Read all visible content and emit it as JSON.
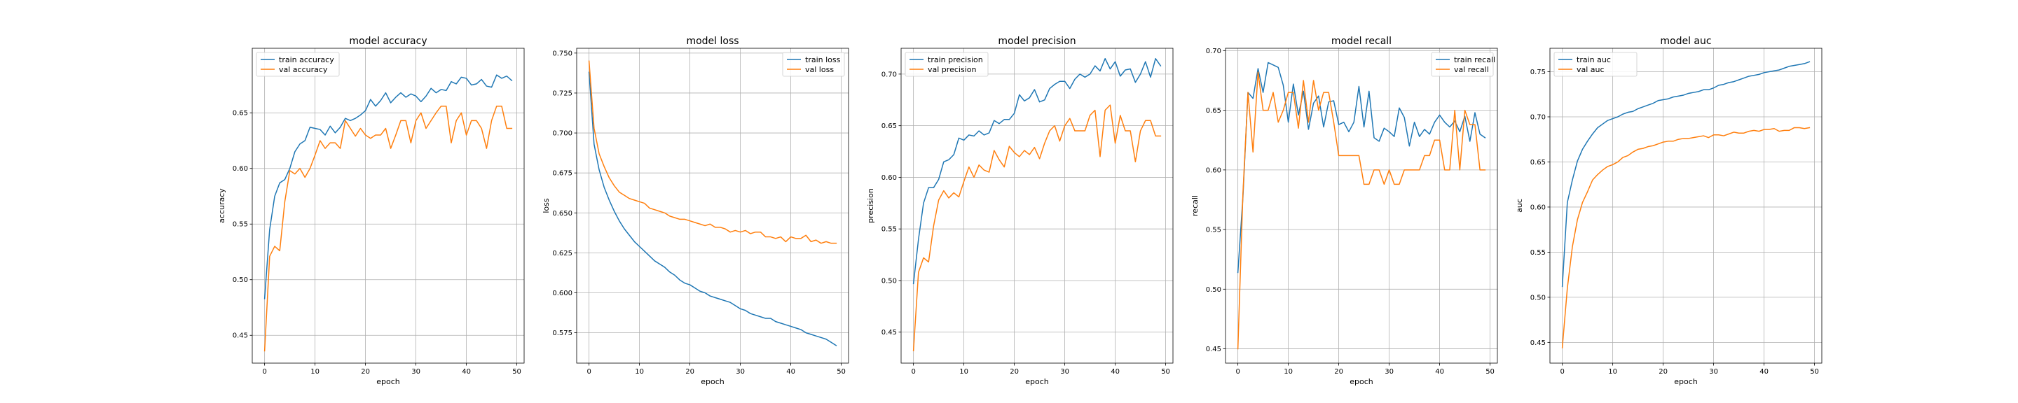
{
  "chart_data": [
    {
      "type": "line",
      "title": "model accuracy",
      "xlabel": "epoch",
      "ylabel": "accuracy",
      "xlim": [
        -2.45,
        51.45
      ],
      "ylim": [
        0.425,
        0.708
      ],
      "xticks": [
        0,
        10,
        20,
        30,
        40,
        50
      ],
      "yticks": [
        0.45,
        0.5,
        0.55,
        0.6,
        0.65
      ],
      "ytick_labels": [
        "0.45",
        "0.50",
        "0.55",
        "0.60",
        "0.65"
      ],
      "grid": true,
      "legend": "upper-left",
      "x": [
        0,
        1,
        2,
        3,
        4,
        5,
        6,
        7,
        8,
        9,
        10,
        11,
        12,
        13,
        14,
        15,
        16,
        17,
        18,
        19,
        20,
        21,
        22,
        23,
        24,
        25,
        26,
        27,
        28,
        29,
        30,
        31,
        32,
        33,
        34,
        35,
        36,
        37,
        38,
        39,
        40,
        41,
        42,
        43,
        44,
        45,
        46,
        47,
        48,
        49
      ],
      "series": [
        {
          "name": "train accuracy",
          "color": "#1f77b4",
          "values": [
            0.483,
            0.545,
            0.575,
            0.587,
            0.59,
            0.6,
            0.615,
            0.622,
            0.625,
            0.637,
            0.636,
            0.635,
            0.63,
            0.638,
            0.632,
            0.637,
            0.645,
            0.643,
            0.645,
            0.648,
            0.652,
            0.662,
            0.656,
            0.661,
            0.668,
            0.659,
            0.664,
            0.668,
            0.664,
            0.667,
            0.665,
            0.66,
            0.665,
            0.672,
            0.668,
            0.671,
            0.67,
            0.678,
            0.676,
            0.682,
            0.681,
            0.675,
            0.676,
            0.68,
            0.674,
            0.673,
            0.684,
            0.681,
            0.683,
            0.679
          ]
        },
        {
          "name": "val accuracy",
          "color": "#ff7f0e",
          "values": [
            0.436,
            0.521,
            0.53,
            0.526,
            0.57,
            0.598,
            0.595,
            0.6,
            0.592,
            0.6,
            0.612,
            0.625,
            0.618,
            0.623,
            0.623,
            0.618,
            0.643,
            0.636,
            0.629,
            0.636,
            0.63,
            0.627,
            0.63,
            0.63,
            0.636,
            0.618,
            0.63,
            0.643,
            0.643,
            0.623,
            0.643,
            0.65,
            0.636,
            0.643,
            0.65,
            0.656,
            0.656,
            0.623,
            0.643,
            0.65,
            0.63,
            0.643,
            0.643,
            0.636,
            0.618,
            0.643,
            0.656,
            0.656,
            0.636,
            0.636
          ]
        }
      ]
    },
    {
      "type": "line",
      "title": "model loss",
      "xlabel": "epoch",
      "ylabel": "loss",
      "xlim": [
        -2.45,
        51.45
      ],
      "ylim": [
        0.556,
        0.753
      ],
      "xticks": [
        0,
        10,
        20,
        30,
        40,
        50
      ],
      "yticks": [
        0.575,
        0.6,
        0.625,
        0.65,
        0.675,
        0.7,
        0.725,
        0.75
      ],
      "ytick_labels": [
        "0.575",
        "0.600",
        "0.625",
        "0.650",
        "0.675",
        "0.700",
        "0.725",
        "0.750"
      ],
      "grid": true,
      "legend": "upper-right",
      "x": [
        0,
        1,
        2,
        3,
        4,
        5,
        6,
        7,
        8,
        9,
        10,
        11,
        12,
        13,
        14,
        15,
        16,
        17,
        18,
        19,
        20,
        21,
        22,
        23,
        24,
        25,
        26,
        27,
        28,
        29,
        30,
        31,
        32,
        33,
        34,
        35,
        36,
        37,
        38,
        39,
        40,
        41,
        42,
        43,
        44,
        45,
        46,
        47,
        48,
        49
      ],
      "series": [
        {
          "name": "train loss",
          "color": "#1f77b4",
          "values": [
            0.738,
            0.693,
            0.677,
            0.666,
            0.658,
            0.651,
            0.645,
            0.64,
            0.636,
            0.632,
            0.629,
            0.626,
            0.623,
            0.62,
            0.618,
            0.616,
            0.613,
            0.611,
            0.608,
            0.606,
            0.605,
            0.603,
            0.601,
            0.6,
            0.598,
            0.597,
            0.596,
            0.595,
            0.594,
            0.592,
            0.59,
            0.589,
            0.587,
            0.586,
            0.585,
            0.584,
            0.584,
            0.582,
            0.581,
            0.58,
            0.579,
            0.578,
            0.577,
            0.575,
            0.574,
            0.573,
            0.572,
            0.571,
            0.569,
            0.567
          ]
        },
        {
          "name": "val loss",
          "color": "#ff7f0e",
          "values": [
            0.745,
            0.703,
            0.687,
            0.679,
            0.672,
            0.667,
            0.663,
            0.661,
            0.659,
            0.658,
            0.657,
            0.656,
            0.653,
            0.652,
            0.651,
            0.65,
            0.648,
            0.647,
            0.646,
            0.646,
            0.645,
            0.644,
            0.643,
            0.642,
            0.643,
            0.641,
            0.641,
            0.64,
            0.638,
            0.639,
            0.638,
            0.639,
            0.637,
            0.638,
            0.638,
            0.635,
            0.635,
            0.634,
            0.635,
            0.632,
            0.635,
            0.634,
            0.634,
            0.636,
            0.632,
            0.633,
            0.631,
            0.632,
            0.631,
            0.631
          ]
        }
      ]
    },
    {
      "type": "line",
      "title": "model precision",
      "xlabel": "epoch",
      "ylabel": "precision",
      "xlim": [
        -2.45,
        51.45
      ],
      "ylim": [
        0.42,
        0.725
      ],
      "xticks": [
        0,
        10,
        20,
        30,
        40,
        50
      ],
      "yticks": [
        0.45,
        0.5,
        0.55,
        0.6,
        0.65,
        0.7
      ],
      "ytick_labels": [
        "0.45",
        "0.50",
        "0.55",
        "0.60",
        "0.65",
        "0.70"
      ],
      "grid": true,
      "legend": "upper-left",
      "x": [
        0,
        1,
        2,
        3,
        4,
        5,
        6,
        7,
        8,
        9,
        10,
        11,
        12,
        13,
        14,
        15,
        16,
        17,
        18,
        19,
        20,
        21,
        22,
        23,
        24,
        25,
        26,
        27,
        28,
        29,
        30,
        31,
        32,
        33,
        34,
        35,
        36,
        37,
        38,
        39,
        40,
        41,
        42,
        43,
        44,
        45,
        46,
        47,
        48,
        49
      ],
      "series": [
        {
          "name": "train precision",
          "color": "#1f77b4",
          "values": [
            0.497,
            0.54,
            0.575,
            0.59,
            0.59,
            0.598,
            0.615,
            0.617,
            0.622,
            0.638,
            0.636,
            0.641,
            0.64,
            0.645,
            0.641,
            0.643,
            0.655,
            0.652,
            0.656,
            0.656,
            0.662,
            0.68,
            0.674,
            0.677,
            0.685,
            0.673,
            0.675,
            0.686,
            0.69,
            0.693,
            0.693,
            0.686,
            0.695,
            0.7,
            0.697,
            0.7,
            0.708,
            0.703,
            0.715,
            0.705,
            0.712,
            0.698,
            0.704,
            0.705,
            0.692,
            0.7,
            0.712,
            0.697,
            0.715,
            0.708
          ]
        },
        {
          "name": "val precision",
          "color": "#ff7f0e",
          "values": [
            0.432,
            0.508,
            0.522,
            0.518,
            0.553,
            0.578,
            0.587,
            0.58,
            0.585,
            0.581,
            0.596,
            0.61,
            0.6,
            0.612,
            0.607,
            0.605,
            0.626,
            0.617,
            0.61,
            0.63,
            0.624,
            0.62,
            0.626,
            0.622,
            0.629,
            0.618,
            0.633,
            0.645,
            0.65,
            0.635,
            0.65,
            0.657,
            0.645,
            0.645,
            0.645,
            0.66,
            0.665,
            0.62,
            0.665,
            0.67,
            0.633,
            0.66,
            0.645,
            0.645,
            0.615,
            0.645,
            0.655,
            0.655,
            0.64,
            0.64
          ]
        }
      ]
    },
    {
      "type": "line",
      "title": "model recall",
      "xlabel": "epoch",
      "ylabel": "recall",
      "xlim": [
        -2.45,
        51.45
      ],
      "ylim": [
        0.438,
        0.702
      ],
      "xticks": [
        0,
        10,
        20,
        30,
        40,
        50
      ],
      "yticks": [
        0.45,
        0.5,
        0.55,
        0.6,
        0.65,
        0.7
      ],
      "ytick_labels": [
        "0.45",
        "0.50",
        "0.55",
        "0.60",
        "0.65",
        "0.70"
      ],
      "grid": true,
      "legend": "upper-right",
      "x": [
        0,
        1,
        2,
        3,
        4,
        5,
        6,
        7,
        8,
        9,
        10,
        11,
        12,
        13,
        14,
        15,
        16,
        17,
        18,
        19,
        20,
        21,
        22,
        23,
        24,
        25,
        26,
        27,
        28,
        29,
        30,
        31,
        32,
        33,
        34,
        35,
        36,
        37,
        38,
        39,
        40,
        41,
        42,
        43,
        44,
        45,
        46,
        47,
        48,
        49
      ],
      "series": [
        {
          "name": "train recall",
          "color": "#1f77b4",
          "values": [
            0.514,
            0.577,
            0.665,
            0.66,
            0.685,
            0.665,
            0.69,
            0.688,
            0.686,
            0.671,
            0.64,
            0.672,
            0.646,
            0.666,
            0.634,
            0.656,
            0.662,
            0.636,
            0.657,
            0.658,
            0.638,
            0.64,
            0.632,
            0.64,
            0.67,
            0.636,
            0.666,
            0.627,
            0.624,
            0.635,
            0.632,
            0.628,
            0.652,
            0.644,
            0.62,
            0.64,
            0.628,
            0.634,
            0.63,
            0.64,
            0.646,
            0.64,
            0.636,
            0.641,
            0.632,
            0.645,
            0.624,
            0.648,
            0.63,
            0.627
          ]
        },
        {
          "name": "val recall",
          "color": "#ff7f0e",
          "values": [
            0.45,
            0.58,
            0.665,
            0.615,
            0.682,
            0.65,
            0.65,
            0.665,
            0.64,
            0.65,
            0.665,
            0.665,
            0.635,
            0.675,
            0.64,
            0.675,
            0.65,
            0.665,
            0.665,
            0.64,
            0.612,
            0.612,
            0.612,
            0.612,
            0.612,
            0.588,
            0.588,
            0.6,
            0.6,
            0.588,
            0.6,
            0.588,
            0.588,
            0.6,
            0.6,
            0.6,
            0.6,
            0.612,
            0.612,
            0.625,
            0.625,
            0.6,
            0.6,
            0.65,
            0.6,
            0.65,
            0.638,
            0.638,
            0.6,
            0.6
          ]
        }
      ]
    },
    {
      "type": "line",
      "title": "model auc",
      "xlabel": "epoch",
      "ylabel": "auc",
      "xlim": [
        -2.45,
        51.45
      ],
      "ylim": [
        0.427,
        0.776
      ],
      "xticks": [
        0,
        10,
        20,
        30,
        40,
        50
      ],
      "yticks": [
        0.45,
        0.5,
        0.55,
        0.6,
        0.65,
        0.7,
        0.75
      ],
      "ytick_labels": [
        "0.45",
        "0.50",
        "0.55",
        "0.60",
        "0.65",
        "0.70",
        "0.75"
      ],
      "grid": true,
      "legend": "upper-left",
      "x": [
        0,
        1,
        2,
        3,
        4,
        5,
        6,
        7,
        8,
        9,
        10,
        11,
        12,
        13,
        14,
        15,
        16,
        17,
        18,
        19,
        20,
        21,
        22,
        23,
        24,
        25,
        26,
        27,
        28,
        29,
        30,
        31,
        32,
        33,
        34,
        35,
        36,
        37,
        38,
        39,
        40,
        41,
        42,
        43,
        44,
        45,
        46,
        47,
        48,
        49
      ],
      "series": [
        {
          "name": "train auc",
          "color": "#1f77b4",
          "values": [
            0.512,
            0.605,
            0.63,
            0.651,
            0.664,
            0.673,
            0.681,
            0.688,
            0.692,
            0.696,
            0.698,
            0.7,
            0.703,
            0.705,
            0.706,
            0.709,
            0.711,
            0.713,
            0.715,
            0.718,
            0.719,
            0.72,
            0.722,
            0.723,
            0.724,
            0.726,
            0.727,
            0.728,
            0.73,
            0.73,
            0.732,
            0.735,
            0.736,
            0.738,
            0.739,
            0.741,
            0.743,
            0.745,
            0.746,
            0.747,
            0.749,
            0.75,
            0.751,
            0.752,
            0.754,
            0.756,
            0.757,
            0.758,
            0.759,
            0.761
          ]
        },
        {
          "name": "val auc",
          "color": "#ff7f0e",
          "values": [
            0.444,
            0.51,
            0.556,
            0.586,
            0.605,
            0.617,
            0.63,
            0.636,
            0.641,
            0.645,
            0.647,
            0.65,
            0.655,
            0.657,
            0.661,
            0.664,
            0.665,
            0.667,
            0.668,
            0.67,
            0.672,
            0.673,
            0.673,
            0.675,
            0.676,
            0.676,
            0.677,
            0.678,
            0.679,
            0.677,
            0.68,
            0.68,
            0.679,
            0.681,
            0.683,
            0.682,
            0.682,
            0.684,
            0.685,
            0.684,
            0.686,
            0.686,
            0.687,
            0.684,
            0.685,
            0.685,
            0.688,
            0.688,
            0.687,
            0.688
          ]
        }
      ]
    }
  ]
}
